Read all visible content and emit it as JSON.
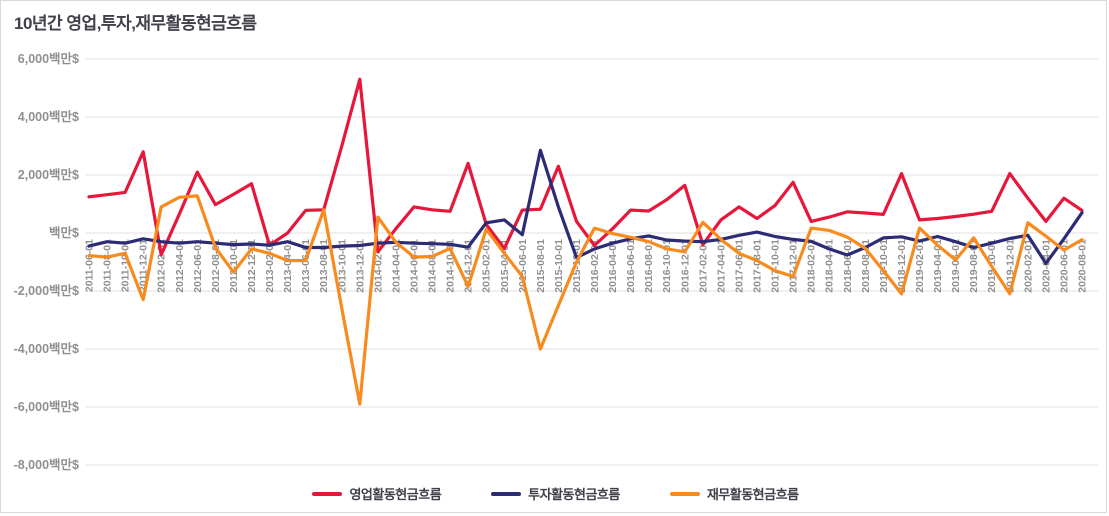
{
  "title": "10년간 영업,투자,재무활동현금흐름",
  "colors": {
    "operating": "#e6173a",
    "investing": "#2b2b76",
    "financing": "#f78b1e",
    "title_text": "#40414b",
    "axis_text": "#8f8f8f",
    "gridline": "#e2e2e2",
    "background": "#ffffff",
    "border": "#d9d9d9",
    "legend_text": "#3f3f4a"
  },
  "y_axis": {
    "unit": "백만$",
    "ticks": [
      {
        "value": 6000,
        "label": "6,000백만$"
      },
      {
        "value": 4000,
        "label": "4,000백만$"
      },
      {
        "value": 2000,
        "label": "2,000백만$"
      },
      {
        "value": 0,
        "label": "백만$"
      },
      {
        "value": -2000,
        "label": "-2,000백만$"
      },
      {
        "value": -4000,
        "label": "-4,000백만$"
      },
      {
        "value": -6000,
        "label": "-6,000백만$"
      },
      {
        "value": -8000,
        "label": "-8,000백만$"
      }
    ]
  },
  "chart_data": {
    "type": "line",
    "title": "10년간 영업,투자,재무활동현금흐름",
    "xlabel": "",
    "ylabel": "백만$",
    "ylim": [
      -8000,
      6000
    ],
    "y_tick_step": 2000,
    "grid": "horizontal",
    "legend_position": "bottom",
    "x_label_rotation": -90,
    "x": [
      "2011-06-01",
      "2011-08-01",
      "2011-10-01",
      "2011-12-01",
      "2012-02-01",
      "2012-04-01",
      "2012-06-01",
      "2012-08-01",
      "2012-10-01",
      "2012-12-01",
      "2013-02-01",
      "2013-04-01",
      "2013-06-01",
      "2013-08-01",
      "2013-10-01",
      "2013-12-01",
      "2014-02-01",
      "2014-04-01",
      "2014-06-01",
      "2014-08-01",
      "2014-10-01",
      "2014-12-01",
      "2015-02-01",
      "2015-04-01",
      "2015-06-01",
      "2015-08-01",
      "2015-10-01",
      "2015-12-01",
      "2016-02-01",
      "2016-04-01",
      "2016-06-01",
      "2016-08-01",
      "2016-10-01",
      "2016-12-01",
      "2017-02-01",
      "2017-04-01",
      "2017-06-01",
      "2017-08-01",
      "2017-10-01",
      "2017-12-01",
      "2018-02-01",
      "2018-04-01",
      "2018-06-01",
      "2018-08-01",
      "2018-10-01",
      "2018-12-01",
      "2019-02-01",
      "2019-04-01",
      "2019-06-01",
      "2019-08-01",
      "2019-10-01",
      "2019-12-01",
      "2020-02-01",
      "2020-04-01",
      "2020-06-01",
      "2020-08-01"
    ],
    "series": [
      {
        "name": "영업활동현금흐름",
        "color_key": "operating",
        "values": [
          1250,
          1320,
          1400,
          2800,
          -750,
          650,
          2100,
          980,
          1330,
          1700,
          -420,
          0,
          780,
          800,
          3000,
          5300,
          -650,
          150,
          900,
          800,
          750,
          2400,
          300,
          -530,
          790,
          820,
          2300,
          400,
          -430,
          150,
          790,
          760,
          1150,
          1640,
          -400,
          450,
          900,
          500,
          950,
          1750,
          400,
          550,
          730,
          690,
          640,
          2050,
          450,
          500,
          570,
          650,
          750,
          2050,
          1200,
          400,
          1200,
          780
        ]
      },
      {
        "name": "투자활동현금흐름",
        "color_key": "investing",
        "values": [
          -450,
          -300,
          -350,
          -200,
          -300,
          -350,
          -300,
          -350,
          -400,
          -380,
          -420,
          -300,
          -500,
          -500,
          -450,
          -430,
          -350,
          -320,
          -350,
          -370,
          -390,
          -490,
          350,
          450,
          -60,
          2850,
          900,
          -850,
          -550,
          -350,
          -200,
          -100,
          -240,
          -280,
          -300,
          -220,
          -80,
          30,
          -120,
          -220,
          -290,
          -550,
          -760,
          -500,
          -170,
          -130,
          -280,
          -120,
          -300,
          -500,
          -350,
          -190,
          -80,
          -1050,
          -200,
          700
        ]
      },
      {
        "name": "재무활동현금흐름",
        "color_key": "financing",
        "values": [
          -780,
          -830,
          -700,
          -2300,
          900,
          1230,
          1280,
          -500,
          -1350,
          -550,
          -700,
          -950,
          -950,
          800,
          -2600,
          -5900,
          550,
          -320,
          -830,
          -810,
          -530,
          -1840,
          130,
          -700,
          -1500,
          -4000,
          -2500,
          -1000,
          170,
          -20,
          -150,
          -300,
          -550,
          -650,
          370,
          -220,
          -700,
          -950,
          -1300,
          -1500,
          170,
          90,
          -140,
          -530,
          -1300,
          -2100,
          170,
          -420,
          -930,
          -170,
          -1150,
          -2100,
          350,
          -110,
          -590,
          -230
        ]
      }
    ]
  }
}
